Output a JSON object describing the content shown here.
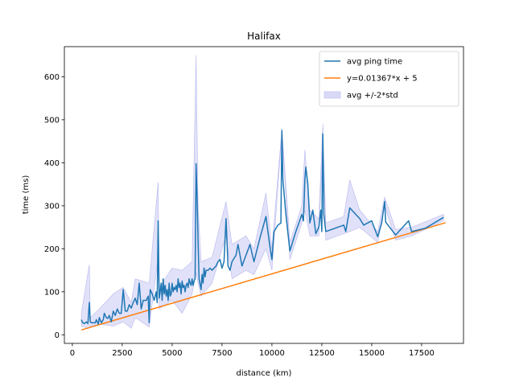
{
  "chart_data": {
    "type": "line",
    "title": "Halifax",
    "xlabel": "distance (km)",
    "ylabel": "time (ms)",
    "xlim": [
      -400,
      19600
    ],
    "ylim": [
      -20,
      670
    ],
    "xticks": [
      0,
      2500,
      5000,
      7500,
      10000,
      12500,
      15000,
      17500
    ],
    "yticks": [
      0,
      100,
      200,
      300,
      400,
      500,
      600
    ],
    "grid": false,
    "legend_position": "top-right",
    "legend": [
      "avg ping time",
      "y=0.01367*x + 5",
      "avg +/-2*std"
    ],
    "colors": {
      "avg": "#1f77b4",
      "fit": "#ff7f0e",
      "band_fill": "#d9d9f7",
      "band_edge": "#b8b8ee"
    },
    "fit_line": {
      "slope": 0.01367,
      "intercept": 5,
      "x_range": [
        450,
        18700
      ]
    },
    "series": [
      {
        "name": "avg ping time",
        "points": [
          [
            450,
            35
          ],
          [
            520,
            28
          ],
          [
            600,
            26
          ],
          [
            700,
            30
          ],
          [
            780,
            26
          ],
          [
            850,
            75
          ],
          [
            900,
            30
          ],
          [
            950,
            28
          ],
          [
            1050,
            28
          ],
          [
            1150,
            28
          ],
          [
            1200,
            35
          ],
          [
            1300,
            25
          ],
          [
            1350,
            40
          ],
          [
            1450,
            28
          ],
          [
            1550,
            35
          ],
          [
            1600,
            50
          ],
          [
            1700,
            40
          ],
          [
            1780,
            38
          ],
          [
            1850,
            45
          ],
          [
            1950,
            30
          ],
          [
            2050,
            55
          ],
          [
            2150,
            45
          ],
          [
            2250,
            60
          ],
          [
            2350,
            50
          ],
          [
            2450,
            50
          ],
          [
            2550,
            105
          ],
          [
            2650,
            55
          ],
          [
            2750,
            55
          ],
          [
            2850,
            70
          ],
          [
            2950,
            62
          ],
          [
            3050,
            75
          ],
          [
            3150,
            85
          ],
          [
            3250,
            70
          ],
          [
            3350,
            120
          ],
          [
            3450,
            60
          ],
          [
            3550,
            80
          ],
          [
            3700,
            80
          ],
          [
            3800,
            90
          ],
          [
            3850,
            28
          ],
          [
            3900,
            105
          ],
          [
            4000,
            95
          ],
          [
            4100,
            80
          ],
          [
            4200,
            100
          ],
          [
            4250,
            75
          ],
          [
            4300,
            265
          ],
          [
            4350,
            85
          ],
          [
            4400,
            100
          ],
          [
            4450,
            120
          ],
          [
            4500,
            80
          ],
          [
            4550,
            130
          ],
          [
            4600,
            95
          ],
          [
            4650,
            115
          ],
          [
            4700,
            90
          ],
          [
            4750,
            105
          ],
          [
            4800,
            80
          ],
          [
            4850,
            120
          ],
          [
            4900,
            90
          ],
          [
            4950,
            95
          ],
          [
            5000,
            120
          ],
          [
            5050,
            100
          ],
          [
            5100,
            110
          ],
          [
            5150,
            105
          ],
          [
            5200,
            115
          ],
          [
            5250,
            100
          ],
          [
            5300,
            130
          ],
          [
            5350,
            110
          ],
          [
            5400,
            120
          ],
          [
            5450,
            95
          ],
          [
            5500,
            125
          ],
          [
            5550,
            110
          ],
          [
            5600,
            115
          ],
          [
            5650,
            100
          ],
          [
            5700,
            115
          ],
          [
            5750,
            120
          ],
          [
            5800,
            110
          ],
          [
            5850,
            130
          ],
          [
            5900,
            120
          ],
          [
            5950,
            115
          ],
          [
            6000,
            130
          ],
          [
            6050,
            115
          ],
          [
            6100,
            125
          ],
          [
            6150,
            130
          ],
          [
            6200,
            398
          ],
          [
            6250,
            320
          ],
          [
            6300,
            215
          ],
          [
            6350,
            130
          ],
          [
            6450,
            105
          ],
          [
            6500,
            140
          ],
          [
            6550,
            120
          ],
          [
            6600,
            155
          ],
          [
            6650,
            135
          ],
          [
            6700,
            150
          ],
          [
            6800,
            150
          ],
          [
            6900,
            155
          ],
          [
            7000,
            150
          ],
          [
            7100,
            155
          ],
          [
            7200,
            160
          ],
          [
            7300,
            170
          ],
          [
            7400,
            175
          ],
          [
            7500,
            155
          ],
          [
            7600,
            170
          ],
          [
            7700,
            270
          ],
          [
            7800,
            160
          ],
          [
            7900,
            150
          ],
          [
            8000,
            170
          ],
          [
            8200,
            185
          ],
          [
            8300,
            210
          ],
          [
            8500,
            160
          ],
          [
            8700,
            185
          ],
          [
            8900,
            210
          ],
          [
            9100,
            170
          ],
          [
            9400,
            225
          ],
          [
            9700,
            275
          ],
          [
            9900,
            205
          ],
          [
            10000,
            175
          ],
          [
            10100,
            240
          ],
          [
            10300,
            255
          ],
          [
            10450,
            260
          ],
          [
            10500,
            475
          ],
          [
            10550,
            360
          ],
          [
            10700,
            280
          ],
          [
            10900,
            195
          ],
          [
            11000,
            210
          ],
          [
            11200,
            240
          ],
          [
            11500,
            280
          ],
          [
            11580,
            265
          ],
          [
            11650,
            360
          ],
          [
            11700,
            390
          ],
          [
            11800,
            350
          ],
          [
            11900,
            260
          ],
          [
            12050,
            290
          ],
          [
            12200,
            235
          ],
          [
            12350,
            250
          ],
          [
            12450,
            290
          ],
          [
            12500,
            240
          ],
          [
            12550,
            467
          ],
          [
            12600,
            280
          ],
          [
            12700,
            240
          ],
          [
            13600,
            255
          ],
          [
            13700,
            240
          ],
          [
            13900,
            295
          ],
          [
            14400,
            270
          ],
          [
            14600,
            255
          ],
          [
            15000,
            265
          ],
          [
            15300,
            228
          ],
          [
            15500,
            260
          ],
          [
            15650,
            310
          ],
          [
            15700,
            262
          ],
          [
            16200,
            232
          ],
          [
            16850,
            265
          ],
          [
            17000,
            240
          ],
          [
            17700,
            248
          ],
          [
            18600,
            273
          ]
        ]
      }
    ],
    "std_band": [
      [
        450,
        20,
        50
      ],
      [
        850,
        15,
        163
      ],
      [
        900,
        20,
        40
      ],
      [
        1350,
        25,
        60
      ],
      [
        2050,
        20,
        95
      ],
      [
        2550,
        30,
        110
      ],
      [
        2950,
        15,
        75
      ],
      [
        3150,
        40,
        130
      ],
      [
        3850,
        18,
        120
      ],
      [
        4300,
        180,
        355
      ],
      [
        4350,
        60,
        110
      ],
      [
        5000,
        80,
        155
      ],
      [
        5500,
        50,
        150
      ],
      [
        6000,
        95,
        170
      ],
      [
        6200,
        145,
        650
      ],
      [
        6300,
        120,
        300
      ],
      [
        6450,
        90,
        170
      ],
      [
        7000,
        120,
        180
      ],
      [
        7700,
        230,
        310
      ],
      [
        8000,
        130,
        210
      ],
      [
        8700,
        150,
        230
      ],
      [
        9100,
        140,
        200
      ],
      [
        9700,
        200,
        330
      ],
      [
        10000,
        150,
        200
      ],
      [
        10500,
        470,
        480
      ],
      [
        10900,
        175,
        215
      ],
      [
        11500,
        260,
        300
      ],
      [
        11650,
        290,
        430
      ],
      [
        11900,
        230,
        290
      ],
      [
        12350,
        230,
        270
      ],
      [
        12550,
        445,
        490
      ],
      [
        12700,
        220,
        260
      ],
      [
        13600,
        235,
        275
      ],
      [
        13900,
        240,
        360
      ],
      [
        14400,
        250,
        290
      ],
      [
        15300,
        215,
        240
      ],
      [
        15650,
        300,
        320
      ],
      [
        16200,
        220,
        245
      ],
      [
        17000,
        230,
        250
      ],
      [
        18600,
        265,
        280
      ]
    ]
  }
}
